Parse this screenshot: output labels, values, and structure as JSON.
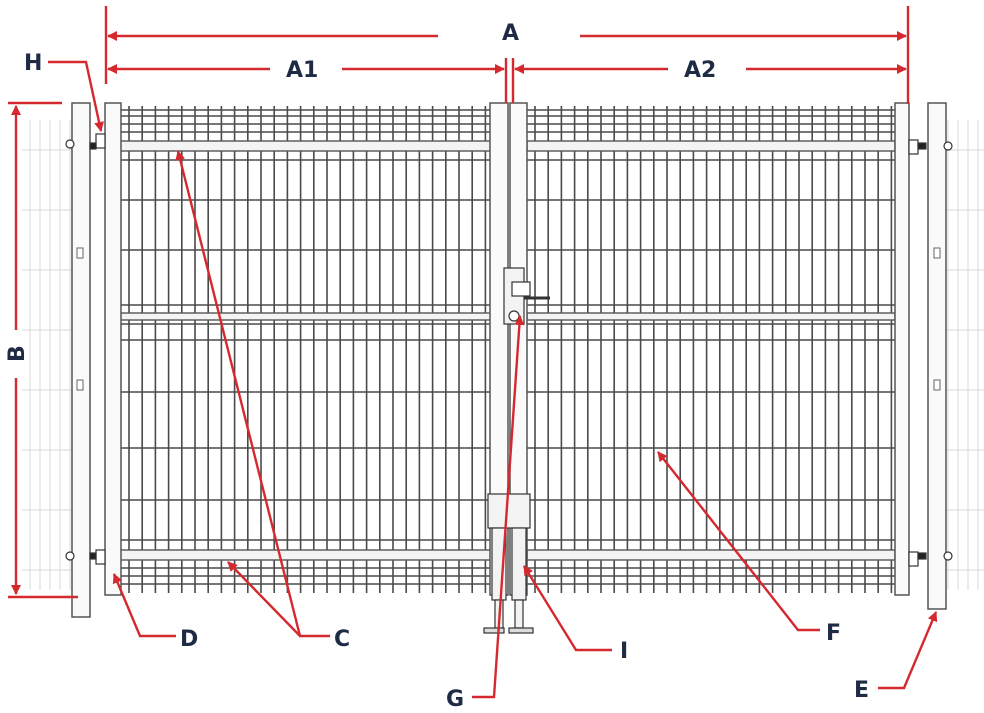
{
  "labels": {
    "A": "A",
    "A1": "A1",
    "A2": "A2",
    "B": "B",
    "C": "C",
    "D": "D",
    "E": "E",
    "F": "F",
    "G": "G",
    "H": "H",
    "I": "I"
  },
  "colors": {
    "annotation": "#d42a2f",
    "label_text": "#1f2a44",
    "structure": "#555555",
    "mesh": "#4a4a4a",
    "background_fence": "#d6d6d6"
  }
}
